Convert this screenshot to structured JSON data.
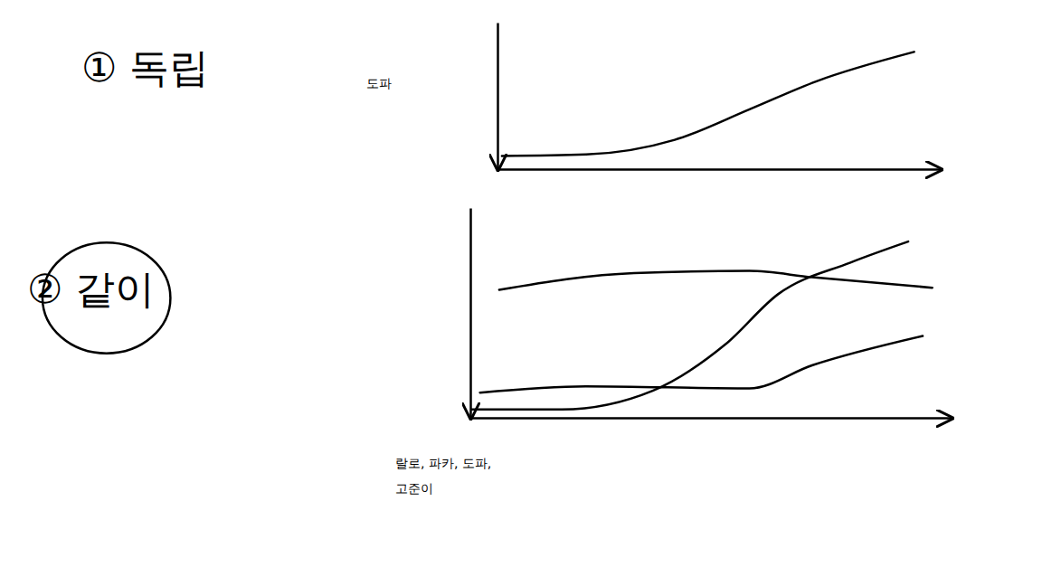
{
  "chart_data": [
    {
      "type": "line",
      "title": "① 독립",
      "xlim": [
        0,
        100
      ],
      "ylim": [
        0,
        100
      ],
      "tick_labels": false,
      "series": [
        {
          "name": "도파",
          "color": "#000000",
          "x": [
            1,
            20,
            40,
            57,
            72,
            94
          ],
          "values": [
            9,
            10,
            20,
            41,
            60,
            80
          ]
        }
      ]
    },
    {
      "type": "line",
      "title": "② 같이",
      "xlim": [
        0,
        100
      ],
      "ylim": [
        0,
        100
      ],
      "tick_labels": false,
      "annotations": [
        "랄로, 파카, 도파,",
        "고준이"
      ],
      "series": [
        {
          "color": "#000000",
          "x": [
            6,
            34,
            58,
            71,
            96
          ],
          "values": [
            61,
            69,
            70,
            67,
            62
          ]
        },
        {
          "color": "#000000",
          "x": [
            0,
            19,
            38,
            53,
            64,
            79,
            91
          ],
          "values": [
            4,
            4,
            13,
            35,
            59,
            74,
            84
          ]
        },
        {
          "color": "#000000",
          "x": [
            2,
            24,
            58,
            71,
            94
          ],
          "values": [
            12,
            15,
            14,
            25,
            39
          ]
        }
      ]
    }
  ]
}
